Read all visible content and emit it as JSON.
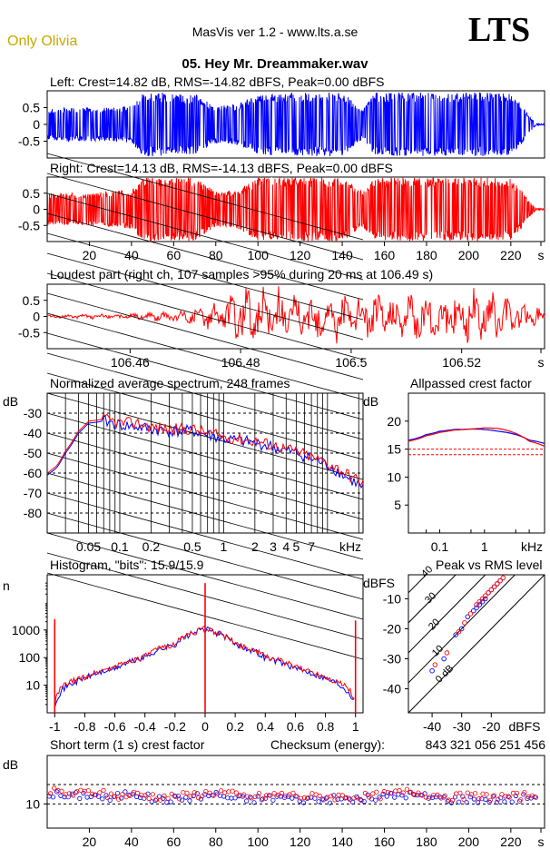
{
  "header": {
    "brand": "Only Olivia",
    "app": "MasVis ver 1.2 - www.lts.a.se",
    "logo": "LTS",
    "file": "05. Hey Mr. Dreammaker.wav"
  },
  "colors": {
    "left": "#0000ff",
    "right": "#ff0000",
    "brand": "#c8a800",
    "grid": "#000000"
  },
  "chart_data": [
    {
      "id": "left",
      "type": "line",
      "title": "Left: Crest=14.82 dB, RMS=-14.82 dBFS, Peak=0.00 dBFS",
      "yticks": [
        "0.5",
        "0",
        "-0.5"
      ],
      "ylim": [
        -1,
        1
      ],
      "color": "#0000ff",
      "envelope_t": [
        0,
        10,
        20,
        30,
        40,
        45,
        50,
        55,
        60,
        70,
        80,
        90,
        100,
        105,
        110,
        120,
        130,
        140,
        150,
        155,
        160,
        170,
        180,
        190,
        200,
        210,
        220,
        225,
        228,
        232
      ],
      "envelope_v": [
        0.45,
        0.5,
        0.5,
        0.5,
        0.55,
        0.95,
        0.95,
        0.95,
        0.9,
        0.9,
        0.55,
        0.6,
        0.9,
        0.95,
        0.9,
        0.95,
        0.95,
        0.95,
        0.45,
        0.95,
        0.95,
        0.95,
        0.95,
        0.95,
        0.95,
        0.95,
        0.9,
        0.6,
        0.3,
        0.02
      ]
    },
    {
      "id": "right",
      "type": "line",
      "title": "Right: Crest=14.13 dB, RMS=-14.13 dBFS, Peak=0.00 dBFS",
      "yticks": [
        "0.5",
        "0",
        "-0.5"
      ],
      "ylim": [
        -1,
        1
      ],
      "color": "#ff0000",
      "xticks": [
        "20",
        "40",
        "60",
        "80",
        "100",
        "120",
        "140",
        "160",
        "180",
        "200",
        "220",
        "s"
      ],
      "xlim": [
        0,
        236
      ],
      "envelope_t": [
        0,
        10,
        20,
        30,
        40,
        45,
        50,
        60,
        70,
        80,
        90,
        100,
        105,
        110,
        120,
        130,
        140,
        150,
        155,
        160,
        170,
        180,
        190,
        200,
        210,
        220,
        225,
        228,
        232
      ],
      "envelope_v": [
        0.5,
        0.5,
        0.5,
        0.55,
        0.6,
        0.98,
        0.98,
        0.98,
        0.98,
        0.55,
        0.6,
        0.98,
        0.98,
        0.98,
        0.98,
        0.98,
        0.98,
        0.55,
        0.98,
        0.98,
        0.98,
        0.98,
        0.98,
        0.98,
        0.98,
        0.95,
        0.6,
        0.3,
        0.02
      ]
    },
    {
      "id": "loudest",
      "type": "line",
      "title": "Loudest part (right ch, 107 samples >95% during 20 ms at 106.49 s)",
      "yticks": [
        "0.5",
        "0",
        "-0.5"
      ],
      "ylim": [
        -1,
        1
      ],
      "color": "#ff0000",
      "xticks": [
        "106.46",
        "106.48",
        "106.5",
        "106.52",
        "s"
      ],
      "xlim": [
        106.445,
        106.535
      ],
      "envelope_t": [
        106.445,
        106.46,
        106.47,
        106.475,
        106.48,
        106.485,
        106.49,
        106.5,
        106.51,
        106.52,
        106.525,
        106.535
      ],
      "envelope_v": [
        0.05,
        0.1,
        0.2,
        0.5,
        0.9,
        0.95,
        0.85,
        0.8,
        0.8,
        0.9,
        0.95,
        0.3
      ]
    },
    {
      "id": "spectrum",
      "type": "line",
      "title": "Normalized average spectrum, 248 frames",
      "ylabel": "dB",
      "yticks": [
        "-30",
        "-40",
        "-50",
        "-60",
        "-70",
        "-80"
      ],
      "ylim": [
        -90,
        -20
      ],
      "xticks": [
        "0.05",
        "0.1",
        "0.2",
        "0.5",
        "1",
        "2",
        "3",
        "4",
        "5",
        "7",
        "kHz"
      ],
      "xlim": [
        0.02,
        22
      ],
      "series": [
        {
          "name": "left",
          "x": [
            0.02,
            0.025,
            0.03,
            0.04,
            0.05,
            0.07,
            0.1,
            0.15,
            0.2,
            0.3,
            0.5,
            0.7,
            1,
            1.5,
            2,
            3,
            4,
            5,
            7,
            10,
            15,
            20,
            22
          ],
          "y": [
            -61,
            -57,
            -50,
            -40,
            -35,
            -34,
            -36,
            -37,
            -38,
            -39,
            -39,
            -41,
            -43,
            -44,
            -45,
            -47,
            -49,
            -50,
            -53,
            -56,
            -62,
            -66,
            -68
          ]
        },
        {
          "name": "right",
          "x": [
            0.02,
            0.025,
            0.03,
            0.04,
            0.05,
            0.07,
            0.1,
            0.15,
            0.2,
            0.3,
            0.5,
            0.7,
            1,
            1.5,
            2,
            3,
            4,
            5,
            7,
            10,
            15,
            20,
            22
          ],
          "y": [
            -60,
            -56,
            -49,
            -39,
            -34,
            -33,
            -35,
            -35,
            -37,
            -38,
            -38,
            -40,
            -42,
            -43,
            -44,
            -46,
            -48,
            -49,
            -52,
            -55,
            -60,
            -64,
            -65
          ]
        }
      ]
    },
    {
      "id": "allpass",
      "type": "line",
      "title": "Allpassed crest factor",
      "ylabel": "dB",
      "yticks": [
        "20",
        "15",
        "10",
        "5"
      ],
      "ylim": [
        0,
        25
      ],
      "xticks": [
        "0.1",
        "1",
        "kHz"
      ],
      "xlim": [
        0.02,
        22
      ],
      "series": [
        {
          "name": "left",
          "x": [
            0.02,
            0.05,
            0.1,
            0.2,
            0.5,
            1,
            2,
            5,
            10,
            22
          ],
          "y": [
            16.6,
            17.6,
            18.2,
            18.5,
            18.6,
            18.5,
            18.2,
            17.6,
            16.6,
            16.0
          ]
        },
        {
          "name": "right",
          "x": [
            0.02,
            0.05,
            0.1,
            0.2,
            0.5,
            1,
            2,
            5,
            10,
            22
          ],
          "y": [
            16.4,
            17.4,
            18.0,
            18.4,
            18.6,
            18.8,
            18.7,
            17.8,
            16.4,
            15.5
          ]
        }
      ],
      "reference_lines": [
        15.0,
        14.0
      ]
    },
    {
      "id": "histogram",
      "type": "line",
      "title": "Histogram, \"bits\": 15.9/15.9",
      "ylabel": "n",
      "yticks": [
        "1000",
        "100",
        "10"
      ],
      "ylim": [
        1,
        100000
      ],
      "log": true,
      "xticks": [
        "-1",
        "-0.8",
        "-0.6",
        "-0.4",
        "-0.2",
        "0",
        "0.2",
        "0.4",
        "0.6",
        "0.8",
        "1"
      ],
      "xlim": [
        -1.05,
        1.05
      ],
      "series": [
        {
          "name": "left",
          "x": [
            -1,
            -0.95,
            -0.8,
            -0.6,
            -0.4,
            -0.2,
            0,
            0.2,
            0.4,
            0.6,
            0.8,
            0.95,
            1
          ],
          "y": [
            2,
            7,
            18,
            40,
            100,
            300,
            1100,
            300,
            100,
            40,
            18,
            6,
            2
          ]
        },
        {
          "name": "right",
          "x": [
            -1,
            -0.95,
            -0.8,
            -0.6,
            -0.4,
            -0.2,
            0,
            0.2,
            0.4,
            0.6,
            0.8,
            0.95,
            1
          ],
          "y": [
            2,
            9,
            20,
            45,
            110,
            320,
            1150,
            320,
            110,
            45,
            20,
            8,
            2
          ]
        }
      ],
      "spikes": [
        {
          "x": -1,
          "y": 2500
        },
        {
          "x": 0,
          "y": 50000
        },
        {
          "x": 1,
          "y": 2200
        }
      ]
    },
    {
      "id": "peak_rms",
      "type": "scatter",
      "title": "Peak vs RMS level",
      "ylabel": "dBFS",
      "yticks": [
        "-10",
        "-20",
        "-30",
        "-40"
      ],
      "ylim": [
        -48,
        -2
      ],
      "xticks": [
        "-40",
        "-30",
        "-20",
        "dBFS"
      ],
      "xlim": [
        -48,
        -2
      ],
      "diagonals": [
        "40",
        "30",
        "20",
        "10",
        "0 dB"
      ],
      "series": [
        {
          "name": "left",
          "x": [
            -40,
            -36,
            -32,
            -30,
            -28,
            -26,
            -25,
            -24,
            -23,
            -22,
            -21,
            -20,
            -19,
            -18,
            -17
          ],
          "y": [
            -34,
            -30,
            -22,
            -20,
            -16,
            -14,
            -13,
            -12,
            -11,
            -10,
            -8,
            -7,
            -6,
            -5,
            -4
          ]
        },
        {
          "name": "right",
          "x": [
            -39,
            -35,
            -31,
            -29,
            -27,
            -25,
            -24,
            -23,
            -22,
            -21,
            -20,
            -19,
            -18,
            -17,
            -16
          ],
          "y": [
            -32,
            -28,
            -21,
            -18,
            -15,
            -12,
            -11,
            -10,
            -9,
            -8,
            -7,
            -6,
            -5,
            -4,
            -3
          ]
        }
      ]
    },
    {
      "id": "short_crest",
      "type": "scatter",
      "title": "Short term (1 s) crest factor",
      "ylabel": "dB",
      "yticks": [
        "10"
      ],
      "ylim": [
        5,
        20
      ],
      "xticks": [
        "20",
        "40",
        "60",
        "80",
        "100",
        "120",
        "140",
        "160",
        "180",
        "200",
        "220",
        "s"
      ],
      "xlim": [
        0,
        236
      ],
      "reference_lines": [
        14.0,
        10.0
      ],
      "series": [
        {
          "name": "left",
          "x": [
            3,
            10,
            20,
            30,
            40,
            50,
            60,
            70,
            80,
            90,
            100,
            110,
            120,
            130,
            140,
            150,
            160,
            170,
            180,
            190,
            200,
            210,
            220,
            230
          ],
          "y": [
            12.0,
            11.5,
            12.0,
            11.0,
            12.5,
            11.0,
            11.0,
            11.5,
            12.0,
            11.0,
            11.0,
            11.5,
            11.0,
            11.0,
            11.0,
            11.0,
            11.5,
            12.0,
            11.5,
            11.0,
            11.0,
            11.0,
            11.0,
            11.5
          ]
        },
        {
          "name": "right",
          "x": [
            5,
            12,
            22,
            32,
            42,
            52,
            62,
            72,
            82,
            92,
            102,
            112,
            122,
            132,
            142,
            152,
            162,
            172,
            182,
            192,
            202,
            212,
            222,
            232
          ],
          "y": [
            12.5,
            12.0,
            12.5,
            11.5,
            12.0,
            11.5,
            11.5,
            12.0,
            12.5,
            11.5,
            11.5,
            12.0,
            11.5,
            11.5,
            11.5,
            11.5,
            12.0,
            12.5,
            12.0,
            11.5,
            11.5,
            11.5,
            11.5,
            12.0
          ]
        }
      ]
    }
  ],
  "checksum_label": "Checksum (energy):",
  "checksum_value": "843 321 056 251 456"
}
